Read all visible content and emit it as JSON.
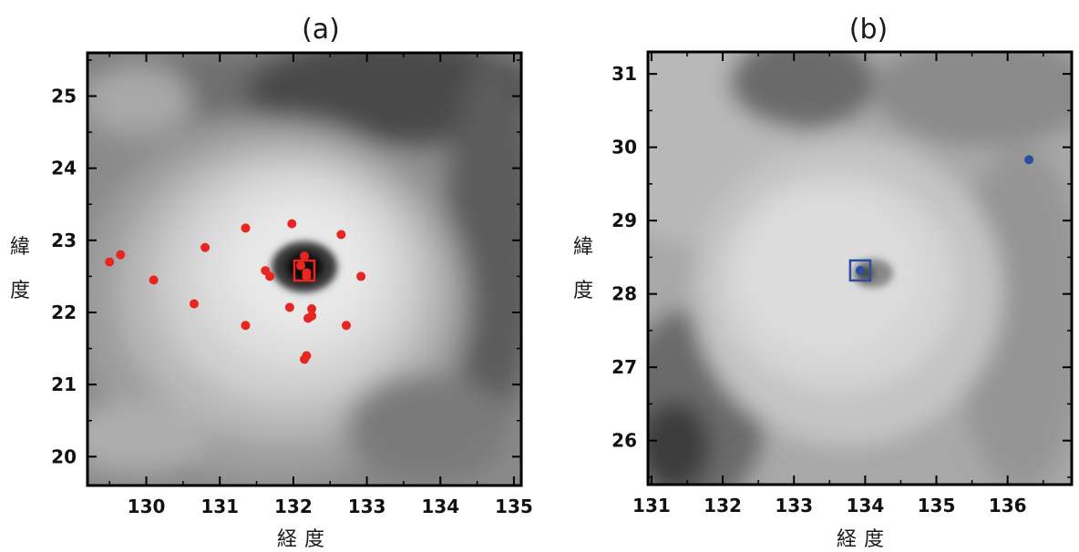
{
  "chart_data": [
    {
      "type": "scatter",
      "title": "(a)",
      "xlabel": "経度",
      "ylabel": "緯度",
      "xlim": [
        129.2,
        135.1
      ],
      "ylim": [
        19.6,
        25.6
      ],
      "xticks": [
        130,
        131,
        132,
        133,
        134,
        135
      ],
      "yticks": [
        20,
        21,
        22,
        23,
        24,
        25
      ],
      "background": "grayscale satellite image of typhoon with dark eye near (132.2, 22.6)",
      "marker_color": "#e8261f",
      "points": [
        {
          "x": 129.5,
          "y": 22.7
        },
        {
          "x": 129.65,
          "y": 22.8
        },
        {
          "x": 130.1,
          "y": 22.45
        },
        {
          "x": 130.65,
          "y": 22.12
        },
        {
          "x": 130.8,
          "y": 22.9
        },
        {
          "x": 131.35,
          "y": 23.17
        },
        {
          "x": 131.35,
          "y": 21.82
        },
        {
          "x": 131.62,
          "y": 22.58
        },
        {
          "x": 131.68,
          "y": 22.5
        },
        {
          "x": 131.95,
          "y": 22.07
        },
        {
          "x": 131.98,
          "y": 23.23
        },
        {
          "x": 132.1,
          "y": 22.65
        },
        {
          "x": 132.15,
          "y": 22.78
        },
        {
          "x": 132.18,
          "y": 22.5
        },
        {
          "x": 132.18,
          "y": 22.55
        },
        {
          "x": 132.15,
          "y": 21.35
        },
        {
          "x": 132.18,
          "y": 21.4
        },
        {
          "x": 132.2,
          "y": 21.92
        },
        {
          "x": 132.25,
          "y": 21.95
        },
        {
          "x": 132.25,
          "y": 22.05
        },
        {
          "x": 132.65,
          "y": 23.08
        },
        {
          "x": 132.72,
          "y": 21.82
        },
        {
          "x": 132.92,
          "y": 22.5
        }
      ],
      "box_marker": {
        "x": 132.15,
        "y": 22.58,
        "color": "#e8261f"
      }
    },
    {
      "type": "scatter",
      "title": "(b)",
      "xlabel": "経度",
      "ylabel": "緯度",
      "xlim": [
        130.95,
        136.9
      ],
      "ylim": [
        25.4,
        31.3
      ],
      "xticks": [
        131,
        132,
        133,
        134,
        135,
        136
      ],
      "yticks": [
        26,
        27,
        28,
        29,
        30,
        31
      ],
      "background": "grayscale satellite image of typhoon with center near (134.0, 28.2)",
      "marker_color": "#2a4f9e",
      "points": [
        {
          "x": 133.93,
          "y": 28.32
        },
        {
          "x": 136.3,
          "y": 29.83
        }
      ],
      "box_marker": {
        "x": 133.93,
        "y": 28.32,
        "color": "#2a4f9e"
      }
    }
  ],
  "panels": [
    {
      "title": "(a)",
      "xlabel": "経度",
      "ylabel_top": "緯",
      "ylabel_bottom": "度"
    },
    {
      "title": "(b)",
      "xlabel": "経度",
      "ylabel_top": "緯",
      "ylabel_bottom": "度"
    }
  ]
}
